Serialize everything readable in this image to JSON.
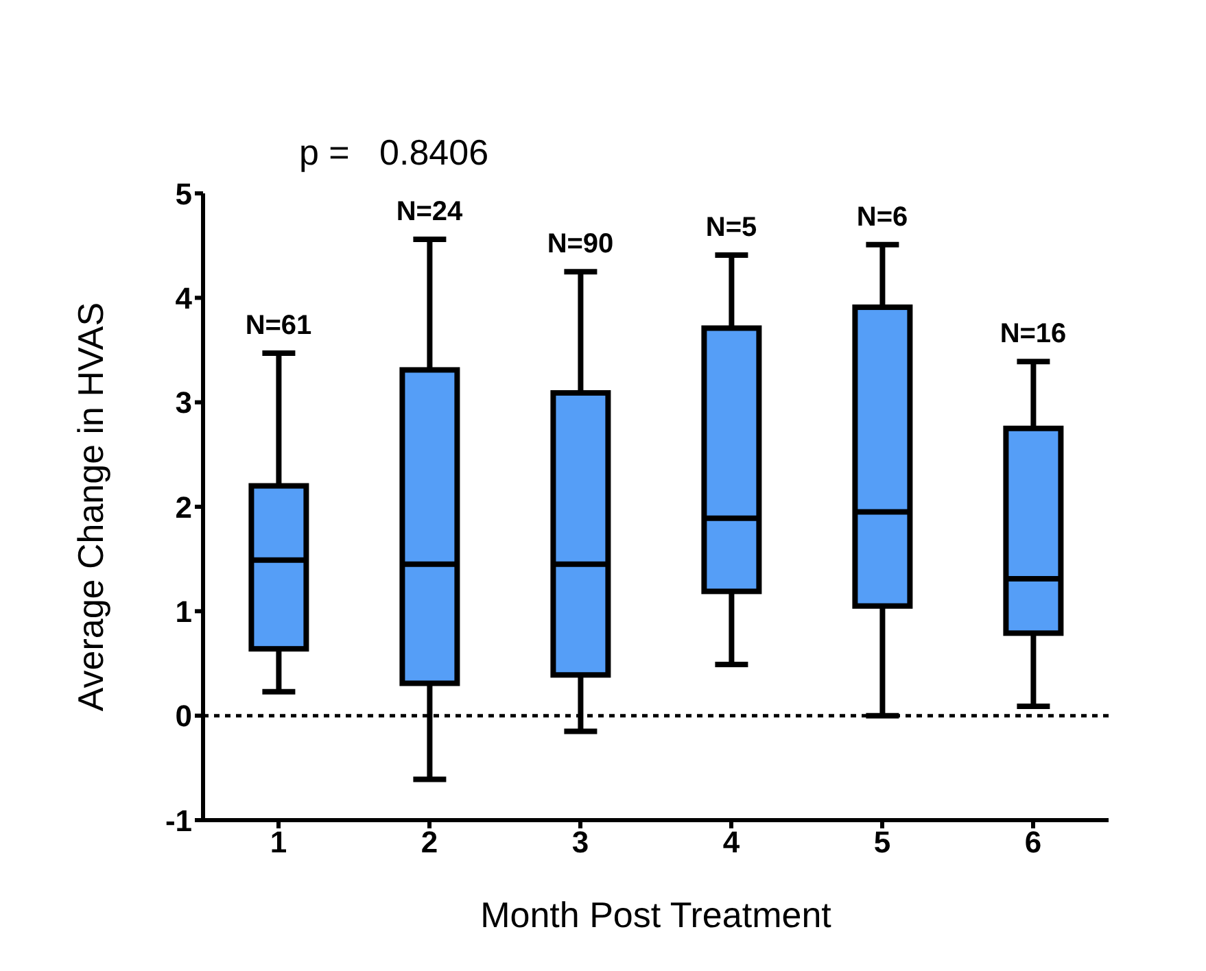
{
  "chart_data": {
    "type": "box",
    "xlabel": "Month Post Treatment",
    "ylabel": "Average Change in HVAS",
    "categories": [
      "1",
      "2",
      "3",
      "4",
      "5",
      "6"
    ],
    "series": [
      {
        "color": "#559ef7",
        "boxes": [
          {
            "low": 0.23,
            "q1": 0.64,
            "median": 1.49,
            "q3": 2.2,
            "high": 3.47
          },
          {
            "low": -0.61,
            "q1": 0.31,
            "median": 1.45,
            "q3": 3.31,
            "high": 4.56
          },
          {
            "low": -0.15,
            "q1": 0.39,
            "median": 1.45,
            "q3": 3.09,
            "high": 4.25
          },
          {
            "low": 0.49,
            "q1": 1.19,
            "median": 1.89,
            "q3": 3.71,
            "high": 4.41
          },
          {
            "low": 0,
            "q1": 1.05,
            "median": 1.95,
            "q3": 3.91,
            "high": 4.51
          },
          {
            "low": 0.09,
            "q1": 0.79,
            "median": 1.31,
            "q3": 2.75,
            "high": 3.39
          }
        ]
      }
    ],
    "ylim": [
      -1,
      5
    ],
    "yticks": [
      -1,
      0,
      1,
      2,
      3,
      4,
      5
    ],
    "ref_lines": [
      {
        "axis": "y",
        "value": 0,
        "line_style": "dashed",
        "color": "#000000"
      }
    ],
    "annotations": [
      "p =   0.8406",
      {
        "text": "N=61",
        "x": "1",
        "y": 3.47
      },
      {
        "text": "N=24",
        "x": "2",
        "y": 4.56
      },
      {
        "text": "N=90",
        "x": "3",
        "y": 4.25
      },
      {
        "text": "N=5",
        "x": "4",
        "y": 4.41
      },
      {
        "text": "N=6",
        "x": "5",
        "y": 4.51
      },
      {
        "text": "N=16",
        "x": "6",
        "y": 3.39
      }
    ]
  }
}
